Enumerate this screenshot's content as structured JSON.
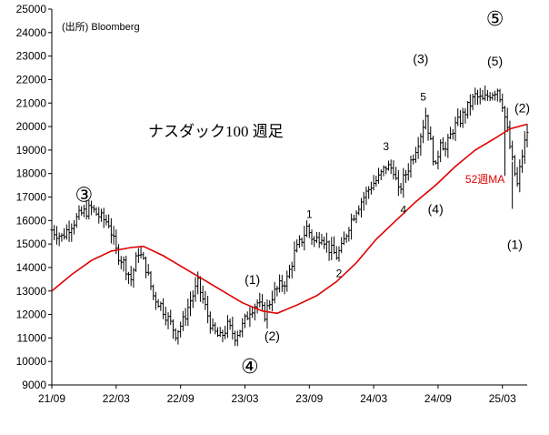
{
  "chart_data": {
    "type": "line",
    "title": "ナスダック100 週足",
    "source": "(出所) Bloomberg",
    "ylim": [
      9000,
      25000
    ],
    "y_ticks": [
      "9000",
      "10000",
      "11000",
      "12000",
      "13000",
      "14000",
      "15000",
      "16000",
      "17000",
      "18000",
      "19000",
      "20000",
      "21000",
      "22000",
      "23000",
      "24000",
      "25000"
    ],
    "x_ticks": [
      "21/09",
      "22/03",
      "22/09",
      "23/03",
      "23/09",
      "24/03",
      "24/09",
      "25/03"
    ],
    "grid": false,
    "series": [
      {
        "name": "",
        "style": "ohlc-weekly",
        "color": "#000000",
        "values": [
          {
            "t": 0,
            "c": 15600
          },
          {
            "t": 4,
            "c": 15300
          },
          {
            "t": 8,
            "c": 15850
          },
          {
            "t": 12,
            "c": 16300
          },
          {
            "t": 16,
            "c": 16500
          },
          {
            "t": 20,
            "c": 16100
          },
          {
            "t": 23,
            "c": 15900
          },
          {
            "t": 26,
            "c": 14700
          },
          {
            "t": 29,
            "c": 14200
          },
          {
            "t": 32,
            "c": 13500
          },
          {
            "t": 35,
            "c": 14700
          },
          {
            "t": 38,
            "c": 14000
          },
          {
            "t": 41,
            "c": 12800
          },
          {
            "t": 44,
            "c": 12400
          },
          {
            "t": 47,
            "c": 11800
          },
          {
            "t": 50,
            "c": 11200
          },
          {
            "t": 53,
            "c": 11700
          },
          {
            "t": 56,
            "c": 12600
          },
          {
            "t": 59,
            "c": 13300
          },
          {
            "t": 62,
            "c": 12300
          },
          {
            "t": 65,
            "c": 11300
          },
          {
            "t": 68,
            "c": 11000
          },
          {
            "t": 71,
            "c": 11500
          },
          {
            "t": 74,
            "c": 11100
          },
          {
            "t": 77,
            "c": 11500
          },
          {
            "t": 80,
            "c": 12200
          },
          {
            "t": 83,
            "c": 12500
          },
          {
            "t": 86,
            "c": 12000
          },
          {
            "t": 89,
            "c": 12800
          },
          {
            "t": 92,
            "c": 13200
          },
          {
            "t": 95,
            "c": 13500
          },
          {
            "t": 98,
            "c": 14600
          },
          {
            "t": 101,
            "c": 15200
          },
          {
            "t": 103,
            "c": 15700
          },
          {
            "t": 106,
            "c": 15100
          },
          {
            "t": 109,
            "c": 15400
          },
          {
            "t": 112,
            "c": 14800
          },
          {
            "t": 115,
            "c": 14500
          },
          {
            "t": 117,
            "c": 14800
          },
          {
            "t": 120,
            "c": 15800
          },
          {
            "t": 123,
            "c": 16500
          },
          {
            "t": 126,
            "c": 17000
          },
          {
            "t": 129,
            "c": 17500
          },
          {
            "t": 132,
            "c": 17800
          },
          {
            "t": 135,
            "c": 18300
          },
          {
            "t": 138,
            "c": 18200
          },
          {
            "t": 140,
            "c": 17200
          },
          {
            "t": 143,
            "c": 18000
          },
          {
            "t": 146,
            "c": 18800
          },
          {
            "t": 149,
            "c": 19700
          },
          {
            "t": 151,
            "c": 20500
          },
          {
            "t": 153,
            "c": 19300
          },
          {
            "t": 155,
            "c": 18200
          },
          {
            "t": 157,
            "c": 19500
          },
          {
            "t": 159,
            "c": 19000
          },
          {
            "t": 162,
            "c": 19900
          },
          {
            "t": 165,
            "c": 20300
          },
          {
            "t": 168,
            "c": 20800
          },
          {
            "t": 171,
            "c": 21300
          },
          {
            "t": 174,
            "c": 21100
          },
          {
            "t": 177,
            "c": 21400
          },
          {
            "t": 180,
            "c": 21600
          },
          {
            "t": 182,
            "c": 21000
          },
          {
            "t": 184,
            "c": 19800
          },
          {
            "t": 186,
            "c": 18500
          },
          {
            "t": 188,
            "c": 17500
          },
          {
            "t": 190,
            "c": 18800
          },
          {
            "t": 192,
            "c": 19800
          }
        ]
      },
      {
        "name": "52週MA",
        "color": "#e00000",
        "values": [
          {
            "t": 0,
            "v": 13000
          },
          {
            "t": 8,
            "v": 13700
          },
          {
            "t": 16,
            "v": 14300
          },
          {
            "t": 24,
            "v": 14700
          },
          {
            "t": 32,
            "v": 14850
          },
          {
            "t": 37,
            "v": 14900
          },
          {
            "t": 45,
            "v": 14500
          },
          {
            "t": 53,
            "v": 14000
          },
          {
            "t": 61,
            "v": 13500
          },
          {
            "t": 69,
            "v": 13000
          },
          {
            "t": 77,
            "v": 12500
          },
          {
            "t": 85,
            "v": 12150
          },
          {
            "t": 91,
            "v": 12050
          },
          {
            "t": 99,
            "v": 12400
          },
          {
            "t": 107,
            "v": 12800
          },
          {
            "t": 115,
            "v": 13400
          },
          {
            "t": 123,
            "v": 14200
          },
          {
            "t": 131,
            "v": 15200
          },
          {
            "t": 139,
            "v": 16000
          },
          {
            "t": 147,
            "v": 16800
          },
          {
            "t": 155,
            "v": 17500
          },
          {
            "t": 163,
            "v": 18300
          },
          {
            "t": 171,
            "v": 19000
          },
          {
            "t": 179,
            "v": 19500
          },
          {
            "t": 185,
            "v": 19900
          },
          {
            "t": 192,
            "v": 20100
          }
        ]
      }
    ],
    "annotations": [
      {
        "text": "③",
        "t": 13,
        "v": 16800,
        "style": "circled"
      },
      {
        "text": "④",
        "t": 80,
        "v": 9500,
        "style": "circled"
      },
      {
        "text": "⑤",
        "t": 179,
        "v": 24300,
        "style": "circled"
      },
      {
        "text": "(1)",
        "t": 81,
        "v": 13300,
        "style": "wave"
      },
      {
        "text": "(2)",
        "t": 89,
        "v": 10900,
        "style": "wave"
      },
      {
        "text": "1",
        "t": 104,
        "v": 16100,
        "style": "sub"
      },
      {
        "text": "2",
        "t": 116,
        "v": 13600,
        "style": "sub"
      },
      {
        "text": "3",
        "t": 135,
        "v": 19000,
        "style": "sub"
      },
      {
        "text": "4",
        "t": 142,
        "v": 16300,
        "style": "sub"
      },
      {
        "text": "(3)",
        "t": 149,
        "v": 22700,
        "style": "wave"
      },
      {
        "text": "5",
        "t": 150,
        "v": 21100,
        "style": "sub"
      },
      {
        "text": "(4)",
        "t": 155,
        "v": 16300,
        "style": "wave"
      },
      {
        "text": "(5)",
        "t": 179,
        "v": 22600,
        "style": "wave"
      },
      {
        "text": "(2)",
        "t": 190,
        "v": 20600,
        "style": "wave"
      },
      {
        "text": "(1)",
        "t": 187,
        "v": 14800,
        "style": "wave"
      }
    ],
    "ma_label": {
      "text": "52週MA",
      "t": 167,
      "v": 17600
    }
  }
}
